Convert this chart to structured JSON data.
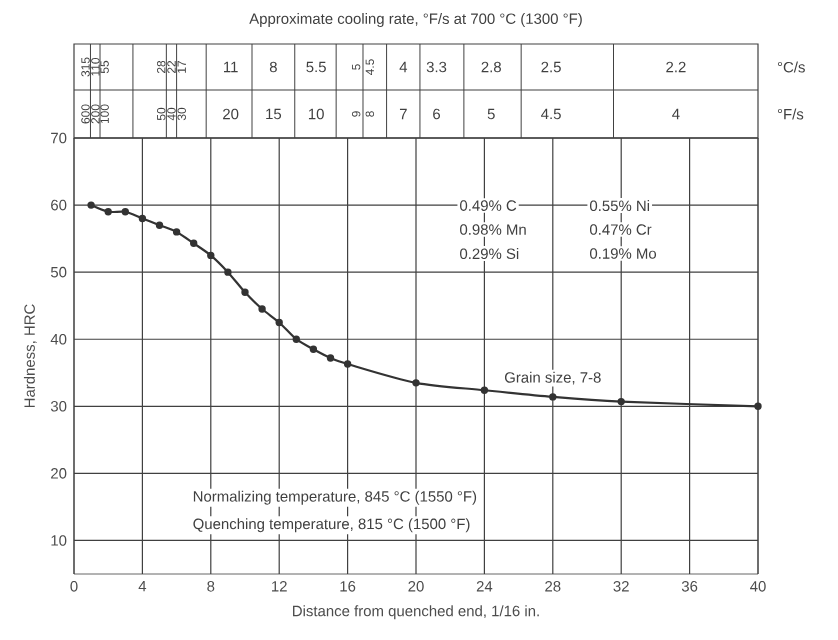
{
  "chart_data": [
    {
      "type": "other",
      "title": "Approximate cooling rate, °F/s at 700 °C (1300 °F)",
      "categories": [
        "315",
        "110",
        "55",
        "28",
        "22",
        "17",
        "11",
        "8",
        "5.5",
        "5",
        "4.5",
        "4",
        "3.3",
        "2.8",
        "2.5",
        "2.2"
      ],
      "annotations": [
        "°C/s",
        "°F/s",
        "600",
        "200",
        "100",
        "50",
        "40",
        "30",
        "20",
        "15",
        "10",
        "9",
        "8",
        "7",
        "6",
        "5",
        "4.5",
        "4"
      ]
    },
    {
      "type": "line",
      "xlabel": "Distance from quenched end, 1/16 in.",
      "ylabel": "Hardness, HRC",
      "x": [
        1,
        2,
        3,
        4,
        5,
        6,
        7,
        8,
        9,
        10,
        11,
        12,
        13,
        14,
        15,
        16,
        20,
        24,
        28,
        32,
        40
      ],
      "series": [
        {
          "color": "#333333",
          "values": [
            60,
            59,
            59,
            58,
            57,
            56,
            54.3,
            52.5,
            50,
            47,
            44.5,
            42.5,
            40,
            38.5,
            37.2,
            36.3,
            33.5,
            32.4,
            31.4,
            30.7,
            30
          ]
        }
      ],
      "xlim": [
        0,
        40
      ],
      "xticks": [
        0,
        4,
        8,
        12,
        16,
        20,
        24,
        28,
        32,
        36,
        40
      ],
      "ylim": [
        5,
        70
      ],
      "yticks": [
        10,
        20,
        30,
        40,
        50,
        60,
        70
      ],
      "annotations": [
        "0.49% C",
        "0.98% Mn",
        "0.29% Si",
        "0.55% Ni",
        "0.47% Cr",
        "0.19% Mo",
        {
          "text": "Grain size, 7-8",
          "x": 28,
          "y": 31.4
        },
        "Normalizing temperature, 845 °C (1550 °F)",
        "Quenching temperature, 815 °C (1500 °F)"
      ],
      "grid": true,
      "marker": "circle"
    }
  ]
}
